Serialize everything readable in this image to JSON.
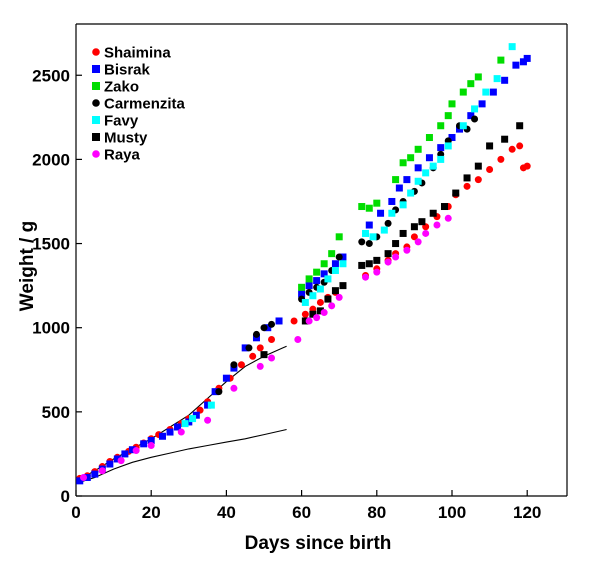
{
  "chart_data": {
    "type": "scatter",
    "xlabel": "Days since birth",
    "ylabel": "Weight / g",
    "xlim": [
      0,
      130
    ],
    "ylim": [
      0,
      2750
    ],
    "xticks": [
      0,
      20,
      40,
      60,
      80,
      100,
      120
    ],
    "yticks": [
      0,
      500,
      1000,
      1500,
      2000,
      2500
    ],
    "legend_position": "top-left",
    "series": [
      {
        "name": "Shaimina",
        "color": "#ff0000",
        "marker": "circle",
        "points": [
          [
            1,
            105
          ],
          [
            3,
            120
          ],
          [
            5,
            145
          ],
          [
            7,
            175
          ],
          [
            9,
            205
          ],
          [
            11,
            230
          ],
          [
            14,
            265
          ],
          [
            16,
            290
          ],
          [
            18,
            315
          ],
          [
            20,
            340
          ],
          [
            22,
            365
          ],
          [
            25,
            395
          ],
          [
            28,
            430
          ],
          [
            30,
            460
          ],
          [
            33,
            510
          ],
          [
            35,
            560
          ],
          [
            38,
            640
          ],
          [
            41,
            700
          ],
          [
            44,
            780
          ],
          [
            47,
            830
          ],
          [
            49,
            880
          ],
          [
            52,
            930
          ],
          [
            58,
            1040
          ],
          [
            61,
            1080
          ],
          [
            63,
            1110
          ],
          [
            65,
            1150
          ],
          [
            67,
            1180
          ],
          [
            69,
            1210
          ],
          [
            77,
            1310
          ],
          [
            80,
            1350
          ],
          [
            83,
            1400
          ],
          [
            85,
            1440
          ],
          [
            88,
            1480
          ],
          [
            90,
            1540
          ],
          [
            93,
            1600
          ],
          [
            96,
            1660
          ],
          [
            99,
            1720
          ],
          [
            101,
            1790
          ],
          [
            104,
            1840
          ],
          [
            107,
            1880
          ],
          [
            110,
            1940
          ],
          [
            113,
            2000
          ],
          [
            116,
            2060
          ],
          [
            118,
            2080
          ],
          [
            119,
            1950
          ],
          [
            120,
            1960
          ]
        ]
      },
      {
        "name": "Bisrak",
        "color": "#0000ff",
        "marker": "square",
        "points": [
          [
            1,
            90
          ],
          [
            3,
            110
          ],
          [
            5,
            130
          ],
          [
            7,
            160
          ],
          [
            9,
            190
          ],
          [
            11,
            220
          ],
          [
            13,
            250
          ],
          [
            15,
            275
          ],
          [
            18,
            310
          ],
          [
            20,
            330
          ],
          [
            23,
            355
          ],
          [
            25,
            380
          ],
          [
            27,
            410
          ],
          [
            30,
            440
          ],
          [
            32,
            480
          ],
          [
            35,
            540
          ],
          [
            37,
            620
          ],
          [
            40,
            700
          ],
          [
            42,
            760
          ],
          [
            45,
            880
          ],
          [
            48,
            940
          ],
          [
            51,
            1000
          ],
          [
            54,
            1040
          ],
          [
            60,
            1200
          ],
          [
            62,
            1250
          ],
          [
            64,
            1280
          ],
          [
            66,
            1320
          ],
          [
            69,
            1380
          ],
          [
            71,
            1420
          ],
          [
            78,
            1610
          ],
          [
            81,
            1680
          ],
          [
            84,
            1750
          ],
          [
            86,
            1830
          ],
          [
            88,
            1880
          ],
          [
            91,
            1950
          ],
          [
            94,
            2010
          ],
          [
            97,
            2070
          ],
          [
            100,
            2130
          ],
          [
            102,
            2180
          ],
          [
            105,
            2260
          ],
          [
            108,
            2330
          ],
          [
            111,
            2400
          ],
          [
            114,
            2470
          ],
          [
            117,
            2560
          ],
          [
            119,
            2580
          ],
          [
            120,
            2600
          ]
        ]
      },
      {
        "name": "Zako",
        "color": "#00dd00",
        "marker": "square",
        "points": [
          [
            60,
            1240
          ],
          [
            62,
            1290
          ],
          [
            64,
            1330
          ],
          [
            66,
            1380
          ],
          [
            68,
            1440
          ],
          [
            70,
            1540
          ],
          [
            76,
            1720
          ],
          [
            78,
            1710
          ],
          [
            80,
            1740
          ],
          [
            85,
            1880
          ],
          [
            87,
            1980
          ],
          [
            89,
            2010
          ],
          [
            91,
            2060
          ],
          [
            94,
            2130
          ],
          [
            97,
            2200
          ],
          [
            99,
            2260
          ],
          [
            100,
            2330
          ],
          [
            103,
            2400
          ],
          [
            105,
            2450
          ],
          [
            107,
            2490
          ],
          [
            113,
            2590
          ]
        ]
      },
      {
        "name": "Carmenzita",
        "color": "#000000",
        "marker": "circle",
        "points": [
          [
            38,
            620
          ],
          [
            42,
            780
          ],
          [
            46,
            880
          ],
          [
            48,
            960
          ],
          [
            50,
            1000
          ],
          [
            52,
            1020
          ],
          [
            60,
            1170
          ],
          [
            62,
            1210
          ],
          [
            64,
            1240
          ],
          [
            66,
            1270
          ],
          [
            68,
            1340
          ],
          [
            70,
            1420
          ],
          [
            76,
            1510
          ],
          [
            78,
            1500
          ],
          [
            80,
            1540
          ],
          [
            83,
            1620
          ],
          [
            85,
            1700
          ],
          [
            87,
            1750
          ],
          [
            90,
            1810
          ],
          [
            92,
            1860
          ],
          [
            95,
            1950
          ],
          [
            97,
            2030
          ],
          [
            99,
            2110
          ],
          [
            102,
            2200
          ],
          [
            104,
            2180
          ],
          [
            106,
            2240
          ]
        ]
      },
      {
        "name": "Favy",
        "color": "#00ffff",
        "marker": "square",
        "points": [
          [
            29,
            430
          ],
          [
            31,
            460
          ],
          [
            36,
            540
          ],
          [
            61,
            1150
          ],
          [
            63,
            1190
          ],
          [
            65,
            1230
          ],
          [
            67,
            1290
          ],
          [
            69,
            1340
          ],
          [
            71,
            1380
          ],
          [
            77,
            1560
          ],
          [
            79,
            1540
          ],
          [
            82,
            1580
          ],
          [
            84,
            1680
          ],
          [
            87,
            1730
          ],
          [
            89,
            1800
          ],
          [
            91,
            1870
          ],
          [
            93,
            1920
          ],
          [
            95,
            1960
          ],
          [
            97,
            2000
          ],
          [
            99,
            2080
          ],
          [
            103,
            2200
          ],
          [
            106,
            2300
          ],
          [
            109,
            2400
          ],
          [
            112,
            2480
          ],
          [
            116,
            2670
          ]
        ]
      },
      {
        "name": "Musty",
        "color": "#000000",
        "marker": "square",
        "points": [
          [
            50,
            840
          ],
          [
            61,
            1040
          ],
          [
            63,
            1080
          ],
          [
            65,
            1100
          ],
          [
            67,
            1170
          ],
          [
            69,
            1220
          ],
          [
            71,
            1250
          ],
          [
            76,
            1370
          ],
          [
            78,
            1380
          ],
          [
            80,
            1400
          ],
          [
            83,
            1440
          ],
          [
            85,
            1500
          ],
          [
            87,
            1560
          ],
          [
            90,
            1600
          ],
          [
            92,
            1630
          ],
          [
            95,
            1680
          ],
          [
            98,
            1720
          ],
          [
            101,
            1800
          ],
          [
            104,
            1890
          ],
          [
            107,
            1960
          ],
          [
            110,
            2080
          ],
          [
            114,
            2120
          ],
          [
            118,
            2200
          ]
        ]
      },
      {
        "name": "Raya",
        "color": "#ff00ff",
        "marker": "circle",
        "points": [
          [
            2,
            110
          ],
          [
            7,
            150
          ],
          [
            12,
            210
          ],
          [
            16,
            270
          ],
          [
            20,
            300
          ],
          [
            28,
            380
          ],
          [
            35,
            450
          ],
          [
            42,
            640
          ],
          [
            49,
            770
          ],
          [
            52,
            820
          ],
          [
            59,
            930
          ],
          [
            62,
            1040
          ],
          [
            64,
            1060
          ],
          [
            66,
            1090
          ],
          [
            68,
            1130
          ],
          [
            70,
            1180
          ],
          [
            77,
            1300
          ],
          [
            80,
            1330
          ],
          [
            83,
            1390
          ],
          [
            85,
            1420
          ],
          [
            88,
            1460
          ],
          [
            91,
            1510
          ],
          [
            93,
            1560
          ],
          [
            96,
            1610
          ],
          [
            99,
            1650
          ]
        ]
      }
    ],
    "reference_curves": [
      [
        [
          0,
          90
        ],
        [
          5,
          150
        ],
        [
          10,
          220
        ],
        [
          15,
          280
        ],
        [
          20,
          340
        ],
        [
          25,
          410
        ],
        [
          30,
          480
        ],
        [
          35,
          580
        ],
        [
          40,
          680
        ],
        [
          45,
          770
        ],
        [
          50,
          830
        ],
        [
          55,
          880
        ],
        [
          56,
          890
        ]
      ],
      [
        [
          0,
          75
        ],
        [
          5,
          110
        ],
        [
          10,
          160
        ],
        [
          15,
          200
        ],
        [
          20,
          230
        ],
        [
          25,
          255
        ],
        [
          30,
          280
        ],
        [
          35,
          300
        ],
        [
          40,
          320
        ],
        [
          45,
          340
        ],
        [
          50,
          365
        ],
        [
          55,
          390
        ],
        [
          56,
          395
        ]
      ]
    ]
  }
}
